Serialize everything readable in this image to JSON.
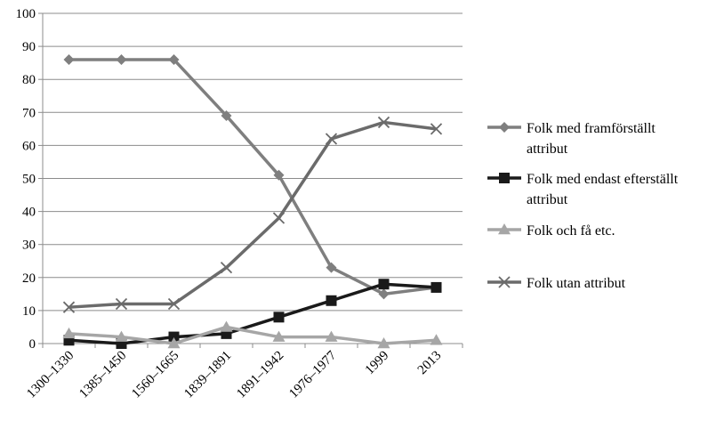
{
  "chart_data": {
    "type": "line",
    "categories": [
      "1300–1330",
      "1385–1450",
      "1560–1665",
      "1839–1891",
      "1891–1942",
      "1976–1977",
      "1999",
      "2013"
    ],
    "ylim": [
      0,
      100
    ],
    "yticks": [
      0,
      10,
      20,
      30,
      40,
      50,
      60,
      70,
      80,
      90,
      100
    ],
    "grid": true,
    "legend_position": "right",
    "series": [
      {
        "name": "Folk med framförställt attribut",
        "name_lines": [
          "Folk med framförställt",
          "attribut"
        ],
        "color": "#7f7f7f",
        "marker": "diamond",
        "values": [
          86,
          86,
          86,
          69,
          51,
          23,
          15,
          17
        ]
      },
      {
        "name": "Folk med endast efterställt attribut",
        "name_lines": [
          "Folk med endast efterställt",
          "attribut"
        ],
        "color": "#1a1a1a",
        "marker": "square",
        "values": [
          1,
          0,
          2,
          3,
          8,
          13,
          18,
          17
        ]
      },
      {
        "name": "Folk och få etc.",
        "name_lines": [
          "Folk och få etc."
        ],
        "color": "#a6a6a6",
        "marker": "triangle",
        "values": [
          3,
          2,
          0,
          5,
          2,
          2,
          0,
          1
        ]
      },
      {
        "name": "Folk utan attribut",
        "name_lines": [
          "Folk utan attribut"
        ],
        "color": "#6b6b6b",
        "marker": "x",
        "values": [
          11,
          12,
          12,
          23,
          38,
          62,
          67,
          65
        ]
      }
    ]
  }
}
